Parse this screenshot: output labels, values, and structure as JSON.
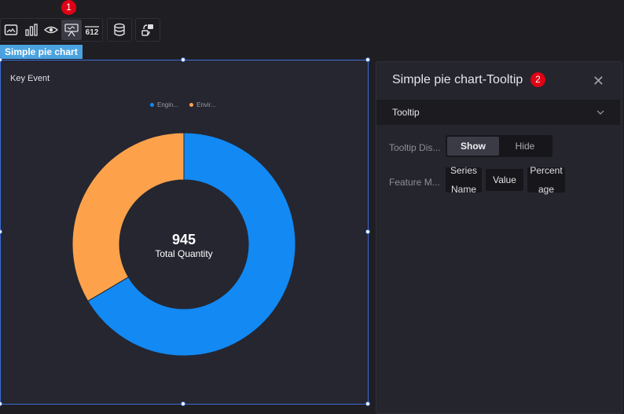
{
  "callouts": {
    "one": "1",
    "two": "2"
  },
  "toolbar": {
    "icons": [
      "image-icon",
      "bar-chart-icon",
      "eye-icon",
      "pie-chart-icon",
      "number-icon",
      "database-icon",
      "transform-icon"
    ],
    "number_icon_text": "612"
  },
  "component_label": "Simple pie chart",
  "card": {
    "title": "Key Event"
  },
  "chart_data": {
    "type": "pie",
    "style": "donut",
    "categories": [
      "Engin...",
      "Envir..."
    ],
    "values": [
      66.5,
      33.5
    ],
    "unit": "percent (estimated)",
    "colors": [
      "#1289f3",
      "#fda24b"
    ],
    "center_value": "945",
    "center_label": "Total Quantity",
    "legend_position": "top"
  },
  "panel": {
    "title": "Simple pie chart-Tooltip",
    "close_symbol": "✕",
    "section": "Tooltip",
    "tooltip_display_label": "Tooltip Dis...",
    "tooltip_options": [
      "Show",
      "Hide"
    ],
    "tooltip_selected": "Show",
    "feature_label": "Feature M...",
    "feature_chips": [
      [
        "Series",
        "Name"
      ],
      [
        "Value"
      ],
      [
        "Percent",
        "age"
      ]
    ]
  }
}
